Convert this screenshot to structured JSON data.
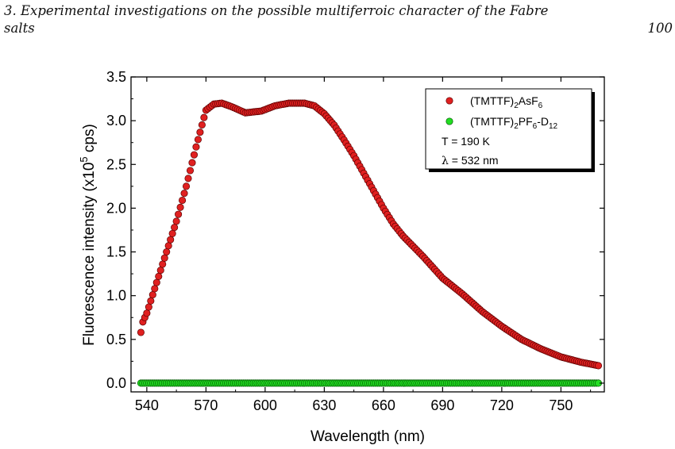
{
  "page": {
    "header_line1": "3. Experimental investigations on the possible multiferroic character of the Fabre",
    "header_line2": "salts",
    "page_number": "100"
  },
  "chart_data": {
    "type": "scatter",
    "xlabel": "Wavelength (nm)",
    "ylabel_pre": "Fluorescence intensity (x10",
    "ylabel_sup": "5",
    "ylabel_post": " cps)",
    "xlim": [
      532,
      772
    ],
    "ylim": [
      -0.1,
      3.5
    ],
    "xticks": [
      540,
      570,
      600,
      630,
      660,
      690,
      720,
      750
    ],
    "yticks": [
      0.0,
      0.5,
      1.0,
      1.5,
      2.0,
      2.5,
      3.0,
      3.5
    ],
    "ytick_labels": [
      "0.0",
      "0.5",
      "1.0",
      "1.5",
      "2.0",
      "2.5",
      "3.0",
      "3.5"
    ],
    "x_start": 537,
    "x_end": 769,
    "x_step": 1,
    "series": [
      {
        "name": "(TMTTF)2AsF6",
        "color": "#e02020",
        "edge": "#5a0000",
        "profile": [
          [
            537,
            0.58
          ],
          [
            538,
            0.7
          ],
          [
            540,
            0.8
          ],
          [
            545,
            1.15
          ],
          [
            550,
            1.5
          ],
          [
            555,
            1.85
          ],
          [
            560,
            2.25
          ],
          [
            565,
            2.7
          ],
          [
            570,
            3.12
          ],
          [
            574,
            3.19
          ],
          [
            578,
            3.2
          ],
          [
            583,
            3.16
          ],
          [
            590,
            3.09
          ],
          [
            598,
            3.11
          ],
          [
            605,
            3.17
          ],
          [
            612,
            3.2
          ],
          [
            620,
            3.2
          ],
          [
            625,
            3.17
          ],
          [
            630,
            3.08
          ],
          [
            635,
            2.95
          ],
          [
            640,
            2.78
          ],
          [
            645,
            2.6
          ],
          [
            650,
            2.4
          ],
          [
            655,
            2.2
          ],
          [
            660,
            2.0
          ],
          [
            665,
            1.82
          ],
          [
            670,
            1.68
          ],
          [
            680,
            1.45
          ],
          [
            690,
            1.2
          ],
          [
            700,
            1.02
          ],
          [
            710,
            0.82
          ],
          [
            720,
            0.65
          ],
          [
            730,
            0.5
          ],
          [
            740,
            0.39
          ],
          [
            750,
            0.3
          ],
          [
            760,
            0.24
          ],
          [
            769,
            0.2
          ]
        ]
      },
      {
        "name": "(TMTTF)2PF6-D12",
        "color": "#22dd22",
        "edge": "#005500",
        "profile": [
          [
            537,
            0.0
          ],
          [
            769,
            0.0
          ]
        ]
      }
    ],
    "legend": {
      "position": "top-right",
      "entry1_pre": "(TMTTF)",
      "entry1_sub1": "2",
      "entry1_mid": "AsF",
      "entry1_sub2": "6",
      "entry2_pre": "(TMTTF)",
      "entry2_sub1": "2",
      "entry2_mid": "PF",
      "entry2_sub2": "6",
      "entry2_post": "-D",
      "entry2_sub3": "12",
      "note1": "T = 190 K",
      "note2_symbol": "λ",
      "note2": " = 532 nm"
    }
  }
}
